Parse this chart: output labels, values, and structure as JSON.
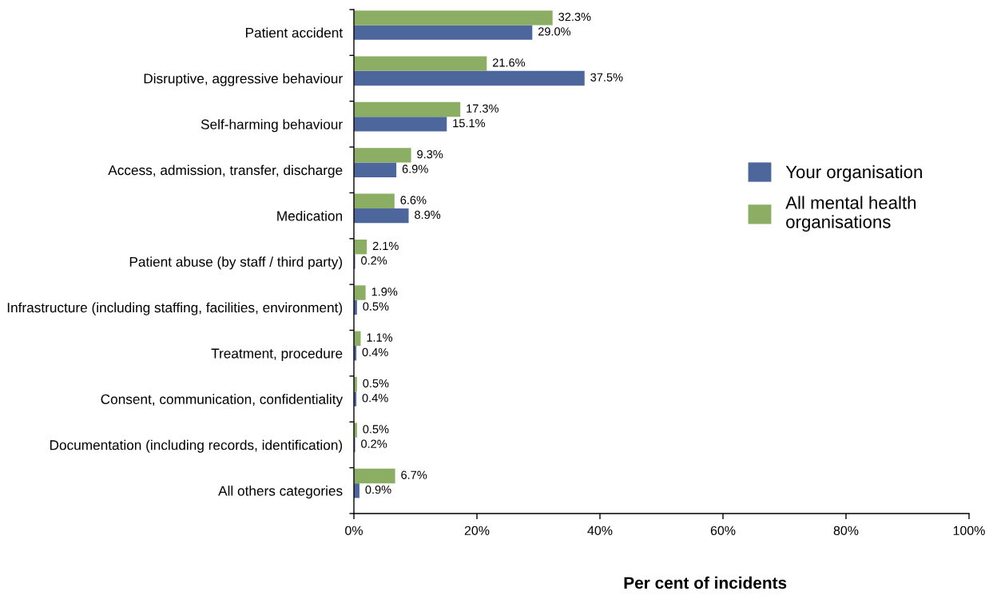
{
  "chart_data": {
    "type": "bar",
    "orientation": "horizontal",
    "categories": [
      "Patient accident",
      "Disruptive, aggressive behaviour",
      "Self-harming behaviour",
      "Access, admission, transfer, discharge",
      "Medication",
      "Patient abuse (by staff / third party)",
      "Infrastructure (including staffing, facilities, environment)",
      "Treatment, procedure",
      "Consent, communication, confidentiality",
      "Documentation (including records, identification)",
      "All others categories"
    ],
    "series": [
      {
        "name": "Your organisation",
        "color": "#4d669c",
        "values": [
          29.0,
          37.5,
          15.1,
          6.9,
          8.9,
          0.2,
          0.5,
          0.4,
          0.4,
          0.2,
          0.9
        ],
        "value_labels": [
          "29.0%",
          "37.5%",
          "15.1%",
          "6.9%",
          "8.9%",
          "0.2%",
          "0.5%",
          "0.4%",
          "0.4%",
          "0.2%",
          "0.9%"
        ]
      },
      {
        "name": "All mental health\norganisations",
        "color": "#8bae64",
        "values": [
          32.3,
          21.6,
          17.3,
          9.3,
          6.6,
          2.1,
          1.9,
          1.1,
          0.5,
          0.5,
          6.7
        ],
        "value_labels": [
          "32.3%",
          "21.6%",
          "17.3%",
          "9.3%",
          "6.6%",
          "2.1%",
          "1.9%",
          "1.1%",
          "0.5%",
          "0.5%",
          "6.7%"
        ]
      }
    ],
    "xlim": [
      0,
      100
    ],
    "xticks": [
      {
        "value": 0,
        "label": "0%"
      },
      {
        "value": 20,
        "label": "20%"
      },
      {
        "value": 40,
        "label": "40%"
      },
      {
        "value": 60,
        "label": "60%"
      },
      {
        "value": 80,
        "label": "80%"
      },
      {
        "value": 100,
        "label": "100%"
      }
    ],
    "xlabel": "Per cent of incidents",
    "legend": "right"
  }
}
